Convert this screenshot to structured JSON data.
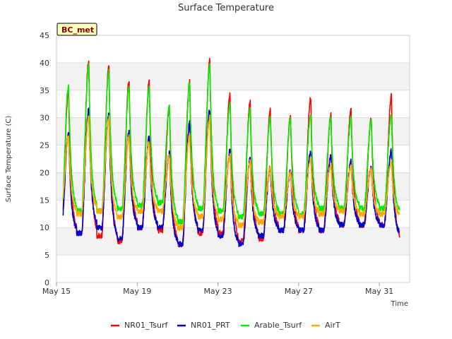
{
  "chart_data": {
    "type": "line",
    "title": "Surface Temperature",
    "xlabel": "Time",
    "ylabel": "Surface Temperature (C)",
    "badge": "BC_met",
    "xlim": [
      0,
      17.5
    ],
    "ylim": [
      0,
      45
    ],
    "yticks": [
      0,
      5,
      10,
      15,
      20,
      25,
      30,
      35,
      40,
      45
    ],
    "xticks": [
      {
        "value": 0,
        "label": "May 15"
      },
      {
        "value": 4,
        "label": "May 19"
      },
      {
        "value": 8,
        "label": "May 23"
      },
      {
        "value": 12,
        "label": "May 27"
      },
      {
        "value": 16,
        "label": "May 31"
      }
    ],
    "grid": true,
    "legend_position": "bottom",
    "day_start": 0.33,
    "day_end": 17.2,
    "series": [
      {
        "name": "NR01_Tsurf",
        "color": "#ff0000",
        "daily_max": [
          35,
          40.5,
          39.5,
          37,
          36.5,
          32,
          36.5,
          40.5,
          34.5,
          33,
          31.5,
          30,
          33.5,
          30.5,
          31.5,
          30,
          34
        ],
        "daily_min": [
          8.5,
          9,
          8.5,
          7.5,
          10,
          9.5,
          7,
          9,
          9,
          7.5,
          8,
          9.5,
          9.5,
          9.5,
          10.5,
          10.5,
          10.5,
          7.5
        ]
      },
      {
        "name": "NR01_PRT",
        "color": "#0000cc",
        "daily_max": [
          27,
          31.5,
          30.5,
          27.5,
          26.5,
          23.5,
          29,
          31.5,
          24,
          22.5,
          21,
          20.5,
          24,
          23,
          22,
          21,
          24
        ],
        "daily_min": [
          9,
          9,
          10,
          8,
          10,
          10,
          7,
          9.5,
          8.5,
          7,
          8.5,
          9.5,
          9.5,
          9.5,
          10.5,
          10.5,
          10.5,
          8.5
        ]
      },
      {
        "name": "Arable_Tsurf",
        "color": "#00ee00",
        "daily_max": [
          36,
          39.5,
          38.5,
          35.5,
          35.5,
          32,
          36.5,
          39.5,
          32.5,
          31.5,
          30,
          29.5,
          30.5,
          30,
          30,
          29.5,
          30.5
        ],
        "daily_min": [
          10.5,
          13,
          13,
          13.5,
          14,
          14.5,
          11,
          13.5,
          13,
          12,
          12.5,
          12.5,
          12.5,
          13.5,
          13.5,
          13.5,
          13.5,
          12.5
        ]
      },
      {
        "name": "AirT",
        "color": "#ffaa00",
        "daily_max": [
          26.5,
          30,
          30,
          26.5,
          25.5,
          23,
          27,
          30,
          23,
          22,
          21,
          20,
          22.5,
          21.5,
          21,
          20.5,
          22
        ],
        "daily_min": [
          13,
          12.5,
          13,
          12,
          13,
          13,
          10,
          12,
          11.5,
          10.5,
          11,
          12,
          12,
          12.5,
          13,
          12.5,
          12.5,
          12
        ]
      }
    ]
  }
}
